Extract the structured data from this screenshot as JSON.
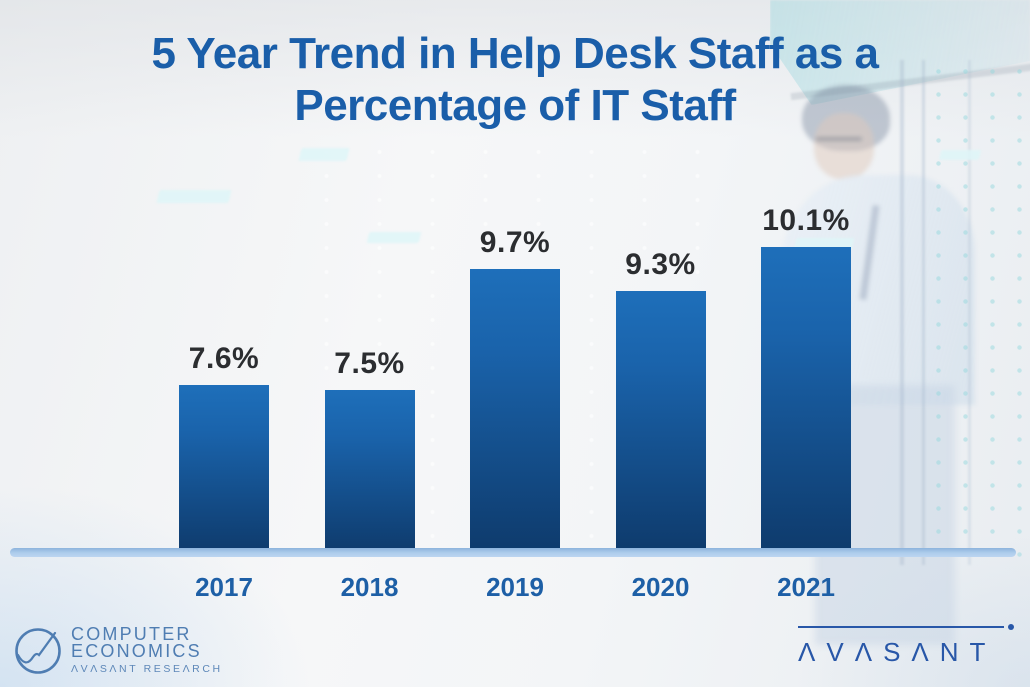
{
  "title": {
    "line1": "5 Year Trend in Help Desk Staff as a",
    "line2": "Percentage of IT Staff"
  },
  "chart_data": {
    "type": "bar",
    "title": "5 Year Trend in Help Desk Staff as a Percentage of IT Staff",
    "categories": [
      "2017",
      "2018",
      "2019",
      "2020",
      "2021"
    ],
    "values": [
      7.6,
      7.5,
      9.7,
      9.3,
      10.1
    ],
    "unit": "%",
    "xlabel": "",
    "ylabel": "",
    "ylim": [
      4.5,
      11
    ],
    "grid": false,
    "legend": "none",
    "bar_color_top": "#1e6fba",
    "bar_color_bottom": "#0e3a6b",
    "baseline_color": "#aecdec",
    "value_label_color": "#2b2d30",
    "category_label_color": "#1d5fa6",
    "title_color": "#1a5ea9"
  },
  "branding": {
    "left_logo": {
      "line1": "COMPUTER",
      "line2": "ECONOMICS",
      "subline": "ΛVΛSΛNT RESEΛRCH",
      "color": "#4f7db2"
    },
    "right_logo": {
      "text": "ΛVΛSΛNT",
      "color": "#2857a8"
    }
  }
}
